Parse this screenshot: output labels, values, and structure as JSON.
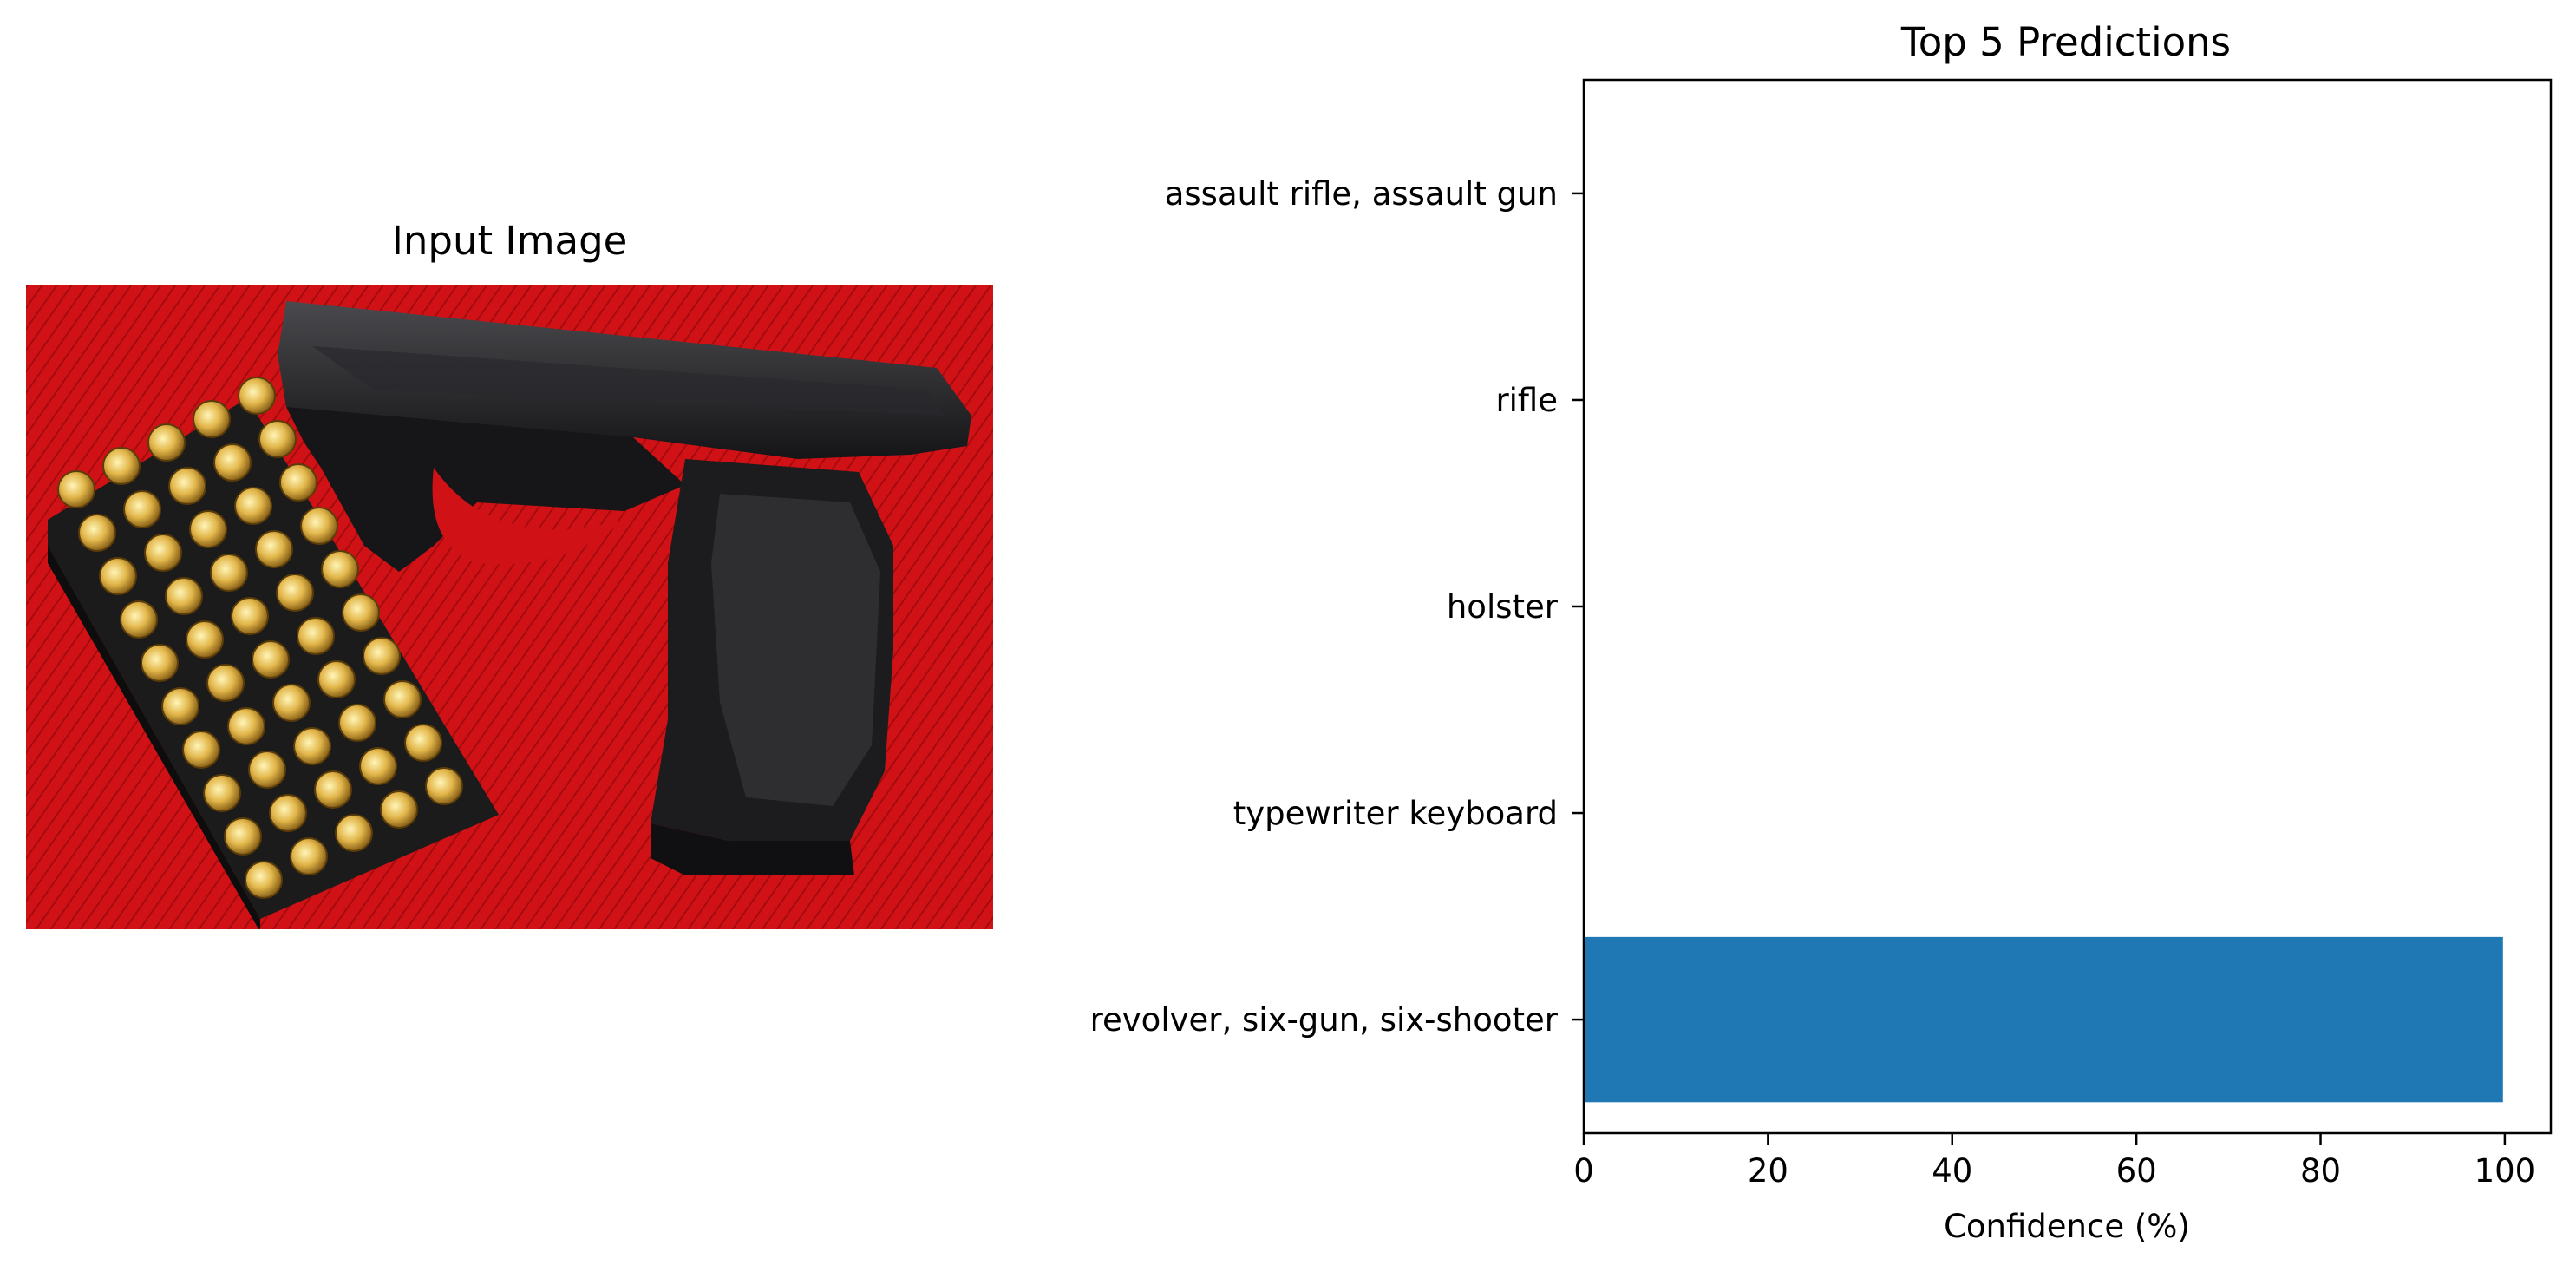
{
  "input_panel": {
    "title": "Input Image"
  },
  "chart_data": {
    "type": "bar",
    "orientation": "horizontal",
    "title": "Top 5 Predictions",
    "xlabel": "Confidence (%)",
    "ylabel": "",
    "categories": [
      "revolver, six-gun, six-shooter",
      "typewriter keyboard",
      "holster",
      "rifle",
      "assault rifle, assault gun"
    ],
    "values": [
      99.8,
      0.05,
      0.04,
      0.02,
      0.01
    ],
    "xlim": [
      0,
      105
    ],
    "xticks": [
      0,
      20,
      40,
      60,
      80,
      100
    ],
    "bar_color": "#1f77b4",
    "grid": false,
    "legend": "none"
  }
}
